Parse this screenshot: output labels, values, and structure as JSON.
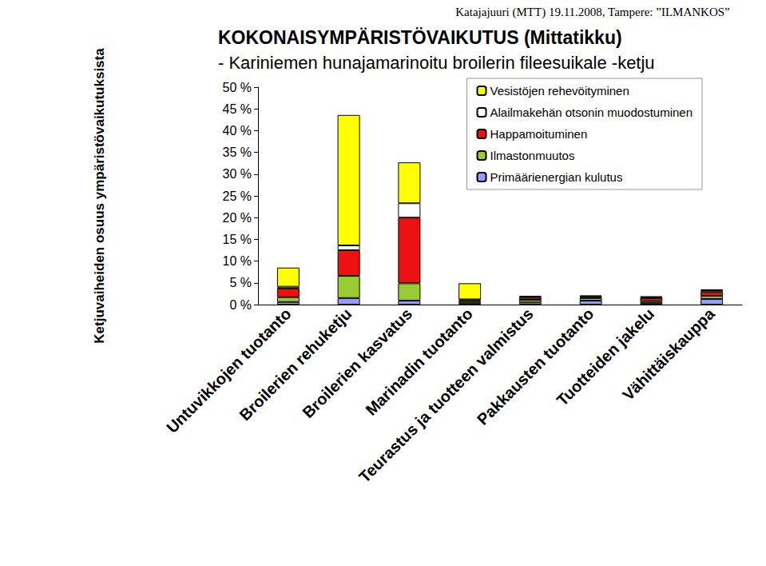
{
  "chart_data": {
    "type": "bar",
    "title": "KOKONAISYMPÄRISTÖVAIKUTUS (Mittatikku)",
    "subtitle": "- Kariniemen hunajamarinoitu broilerin fileesuikale -ketju",
    "annotation": "Katajajuuri (MTT) 19.11.2008, Tampere: ”ILMANKOS”",
    "y_label": "Ketjuvaiheiden osuus ympäristövaikutuksista",
    "categories": [
      "Untuvikkojen tuotanto",
      "Broilerien rehuketju",
      "Broilerien kasvatus",
      "Marinadin tuotanto",
      "Teurastus ja tuotteen valmistus",
      "Pakkausten tuotanto",
      "Tuotteiden jakelu",
      "Vähittäiskauppa"
    ],
    "series": [
      {
        "name": "Primäärienergian kulutus",
        "color": "#9999ff",
        "values": [
          0.6,
          1.5,
          0.9,
          0.4,
          0.5,
          0.9,
          0.4,
          1.3
        ]
      },
      {
        "name": "Ilmastonmuutos",
        "color": "#99cc33",
        "values": [
          1.1,
          5.1,
          4.0,
          0.4,
          0.6,
          0.6,
          0.4,
          0.7
        ]
      },
      {
        "name": "Happamoituminen",
        "color": "#ee1111",
        "values": [
          2.0,
          5.9,
          15.1,
          0.2,
          0.5,
          0.2,
          0.7,
          0.9
        ]
      },
      {
        "name": "Alailmakehän otsonin muodostuminen",
        "color": "#ffffff",
        "values": [
          0.4,
          1.1,
          3.3,
          0.2,
          0.2,
          0.2,
          0.2,
          0.4
        ]
      },
      {
        "name": "Vesistöjen rehevöityminen",
        "color": "#ffff00",
        "values": [
          4.4,
          30.0,
          9.4,
          3.7,
          0.2,
          0.2,
          0.2,
          0.2
        ]
      }
    ],
    "ylim": [
      0,
      50
    ],
    "yticks": [
      {
        "value": 0,
        "label": "0 %"
      },
      {
        "value": 5,
        "label": "5 %"
      },
      {
        "value": 10,
        "label": "10 %"
      },
      {
        "value": 15,
        "label": "15 %"
      },
      {
        "value": 20,
        "label": "20 %"
      },
      {
        "value": 25,
        "label": "25 %"
      },
      {
        "value": 30,
        "label": "30 %"
      },
      {
        "value": 35,
        "label": "35 %"
      },
      {
        "value": 40,
        "label": "40 %"
      },
      {
        "value": 45,
        "label": "45 %"
      },
      {
        "value": 50,
        "label": "50 %"
      }
    ],
    "stacked": true,
    "grid": false,
    "legend": "upper right"
  }
}
